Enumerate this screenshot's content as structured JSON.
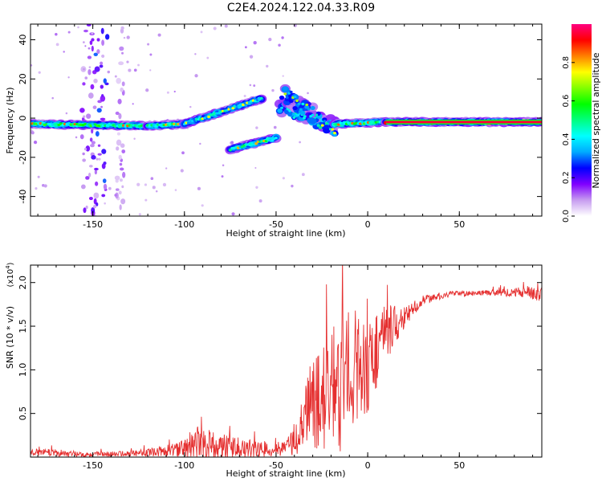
{
  "title": "C2E4.2024.122.04.33.R09",
  "colors": {
    "snr_line": "#e53030",
    "axis": "#000000"
  },
  "chart_data": [
    {
      "type": "heatmap",
      "title": "C2E4.2024.122.04.33.R09",
      "xlabel": "Height of straight line (km)",
      "ylabel": "Frequency (Hz)",
      "xlim": [
        -184,
        95
      ],
      "ylim": [
        -50,
        48
      ],
      "xticks": [
        -150,
        -100,
        -50,
        0,
        50
      ],
      "xtick_labels": [
        "-150",
        "-100",
        "-50",
        "0",
        "50"
      ],
      "yticks": [
        -40,
        -20,
        0,
        20,
        40
      ],
      "ytick_labels": [
        "-40",
        "-20",
        "0",
        "20",
        "40"
      ],
      "colorbar": {
        "label": "Normalized spectral amplitude",
        "range": [
          0,
          1
        ],
        "ticks": [
          0.0,
          0.2,
          0.4,
          0.6,
          0.8
        ],
        "tick_labels": [
          "0.0",
          "0.2",
          "0.4",
          "0.6",
          "0.8"
        ],
        "colormap": [
          "#ffffff",
          "#c79cf0",
          "#8000ff",
          "#0000ff",
          "#00aaff",
          "#00ffff",
          "#00ff80",
          "#00ff00",
          "#80ff00",
          "#ffff00",
          "#ff8000",
          "#ff0000",
          "#ff0080"
        ]
      },
      "segments": [
        {
          "name": "main line",
          "x0": -184,
          "x1": -120,
          "f0": -3,
          "f1": -4,
          "amp": 0.5
        },
        {
          "name": "main line",
          "x0": -120,
          "x1": -100,
          "f0": -4,
          "f1": -3,
          "amp": 0.45
        },
        {
          "name": "rising band",
          "x0": -100,
          "x1": -58,
          "f0": -3,
          "f1": 10,
          "amp": 0.4
        },
        {
          "name": "lower branch",
          "x0": -75,
          "x1": -50,
          "f0": -16,
          "f1": -10,
          "amp": 0.45
        },
        {
          "name": "scatter",
          "x0": -48,
          "x1": -18,
          "f0": 7,
          "f1": -5,
          "amp": 0.4
        },
        {
          "name": "scatter",
          "x0": -45,
          "x1": -30,
          "f0": 12,
          "f1": 2,
          "amp": 0.35
        },
        {
          "name": "return",
          "x0": -18,
          "x1": 10,
          "f0": -3,
          "f1": -2,
          "amp": 0.5
        },
        {
          "name": "steady line",
          "x0": 10,
          "x1": 95,
          "f0": -2,
          "f1": -2,
          "amp": 0.95
        }
      ],
      "vertical_noise": [
        {
          "x": -152,
          "width": 4,
          "amp": 0.12
        },
        {
          "x": -146,
          "width": 4,
          "amp": 0.2
        },
        {
          "x": -135,
          "width": 2,
          "amp": 0.08
        }
      ]
    },
    {
      "type": "line",
      "xlabel": "Height of straight line (km)",
      "ylabel": "SNR (10 * v/v)",
      "yscale_label": "(x10",
      "yscale_exponent": "4",
      "yscale_suffix": ")",
      "xlim": [
        -184,
        95
      ],
      "ylim": [
        0,
        2.2
      ],
      "xticks": [
        -150,
        -100,
        -50,
        0,
        50
      ],
      "xtick_labels": [
        "-150",
        "-100",
        "-50",
        "0",
        "50"
      ],
      "yticks": [
        0.5,
        1.0,
        1.5,
        2.0
      ],
      "ytick_labels": [
        "0.5",
        "1.0",
        "1.5",
        "2.0"
      ],
      "envelope": [
        {
          "x": -184,
          "y": 0.06,
          "noise": 0.04
        },
        {
          "x": -170,
          "y": 0.05,
          "noise": 0.04
        },
        {
          "x": -155,
          "y": 0.03,
          "noise": 0.03
        },
        {
          "x": -130,
          "y": 0.04,
          "noise": 0.03
        },
        {
          "x": -115,
          "y": 0.06,
          "noise": 0.05
        },
        {
          "x": -100,
          "y": 0.1,
          "noise": 0.1
        },
        {
          "x": -95,
          "y": 0.18,
          "noise": 0.2
        },
        {
          "x": -80,
          "y": 0.12,
          "noise": 0.15
        },
        {
          "x": -60,
          "y": 0.08,
          "noise": 0.1
        },
        {
          "x": -45,
          "y": 0.1,
          "noise": 0.08
        },
        {
          "x": -38,
          "y": 0.22,
          "noise": 0.2
        },
        {
          "x": -32,
          "y": 0.55,
          "noise": 0.5
        },
        {
          "x": -25,
          "y": 0.65,
          "noise": 0.6
        },
        {
          "x": -15,
          "y": 0.85,
          "noise": 0.8
        },
        {
          "x": -8,
          "y": 1.05,
          "noise": 0.7
        },
        {
          "x": 0,
          "y": 1.0,
          "noise": 0.5
        },
        {
          "x": 6,
          "y": 1.3,
          "noise": 0.5
        },
        {
          "x": 12,
          "y": 1.45,
          "noise": 0.3
        },
        {
          "x": 20,
          "y": 1.6,
          "noise": 0.12
        },
        {
          "x": 30,
          "y": 1.8,
          "noise": 0.05
        },
        {
          "x": 45,
          "y": 1.87,
          "noise": 0.03
        },
        {
          "x": 65,
          "y": 1.88,
          "noise": 0.03
        },
        {
          "x": 85,
          "y": 1.89,
          "noise": 0.06
        },
        {
          "x": 95,
          "y": 1.9,
          "noise": 0.12
        }
      ]
    }
  ]
}
